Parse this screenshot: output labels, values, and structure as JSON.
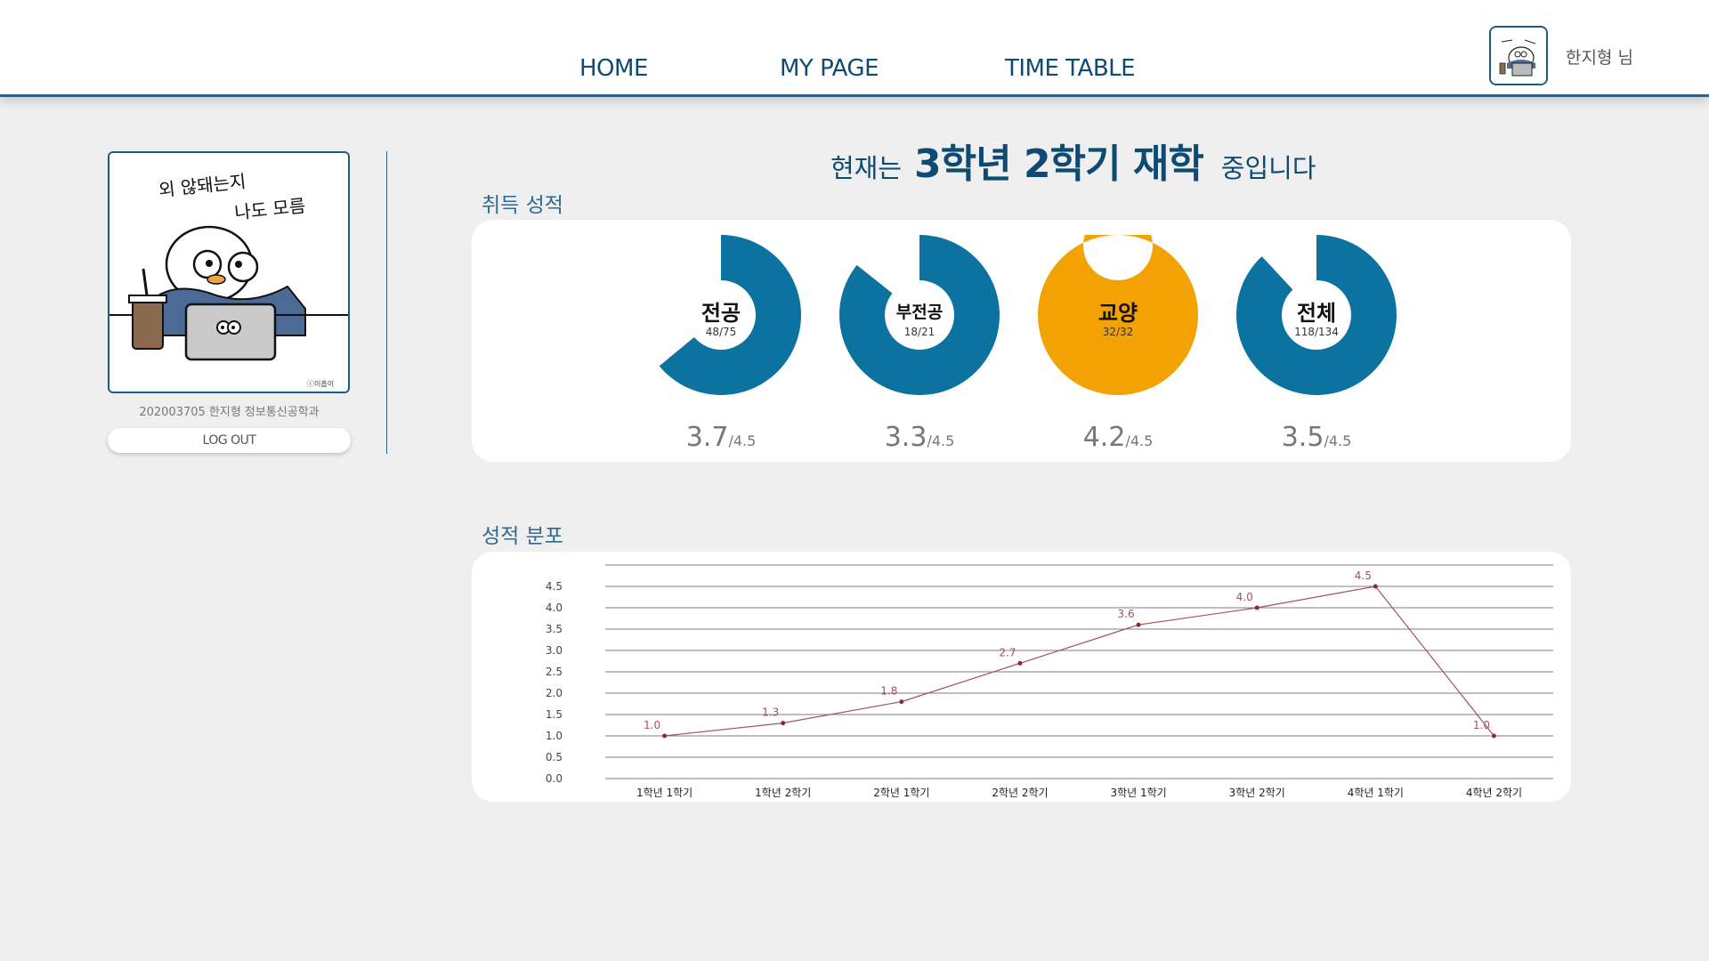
{
  "nav": {
    "home": "HOME",
    "mypage": "MY PAGE",
    "timetable": "TIME TABLE"
  },
  "header": {
    "user_greeting": "한지형 님",
    "avatar_icon": "penguin-laptop-avatar"
  },
  "sidebar": {
    "profile_image_text_line1": "외 않돼는지",
    "profile_image_text_line2": "나도 모름",
    "caption": "202003705 한지형 정보통신공학과",
    "logout_label": "LOG OUT"
  },
  "status": {
    "prefix": "현재는",
    "highlight": "3학년 2학기 재학",
    "suffix": "중입니다"
  },
  "credits": {
    "title": "취득 성적",
    "max_label": "/4.5",
    "items": [
      {
        "label": "전공",
        "earned": 48,
        "total": 75,
        "ratio": "48/75",
        "gpa": "3.7",
        "color": "#0c72a0"
      },
      {
        "label": "부전공",
        "earned": 18,
        "total": 21,
        "ratio": "18/21",
        "gpa": "3.3",
        "color": "#0c72a0"
      },
      {
        "label": "교양",
        "earned": 32,
        "total": 32,
        "ratio": "32/32",
        "gpa": "4.2",
        "color": "#f3a204"
      },
      {
        "label": "전체",
        "earned": 118,
        "total": 134,
        "ratio": "118/134",
        "gpa": "3.5",
        "color": "#0c72a0"
      }
    ]
  },
  "distribution": {
    "title": "성적 분포"
  },
  "chart_data": {
    "type": "line",
    "categories": [
      "1학년 1학기",
      "1학년 2학기",
      "2학년 1학기",
      "2학년 2학기",
      "3학년 1학기",
      "3학년 2학기",
      "4학년 1학기",
      "4학년 2학기"
    ],
    "values": [
      1.0,
      1.3,
      1.8,
      2.7,
      3.6,
      4.0,
      4.5,
      1.0
    ],
    "value_labels": [
      "1.0",
      "1.3",
      "1.8",
      "2.7",
      "3.6",
      "4.0",
      "4.5",
      "1.0"
    ],
    "y_ticks": [
      "0.0",
      "0.5",
      "1.0",
      "1.5",
      "2.0",
      "2.5",
      "3.0",
      "3.5",
      "4.0",
      "4.5"
    ],
    "ylim": [
      0,
      5.0
    ],
    "grid": true,
    "line_color": "#a0545c"
  }
}
